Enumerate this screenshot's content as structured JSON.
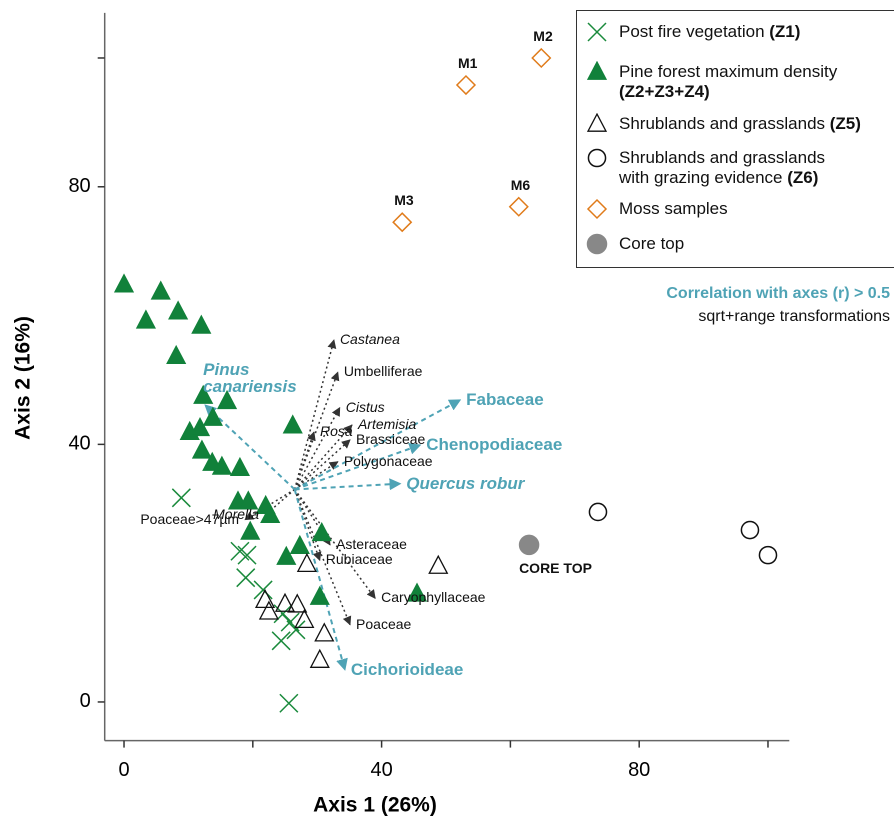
{
  "chart_data": {
    "type": "scatter",
    "x_label": "Axis 1 (26%)",
    "y_label": "Axis 2 (16%)",
    "xlim": [
      -3,
      103
    ],
    "ylim": [
      -6,
      107
    ],
    "xticks": [
      0,
      40,
      80
    ],
    "yticks": [
      0,
      40,
      80
    ],
    "minor_xticks": [
      20,
      60,
      100
    ],
    "minor_yticks": [
      100
    ],
    "series": [
      {
        "name": "Post fire vegetation",
        "code": "(Z1)",
        "marker": "x",
        "color": "#1a8a3c",
        "x": [
          8.9,
          18,
          19.1,
          18.9,
          21.6,
          24.7,
          25.8,
          26.7,
          24.4,
          25.6
        ],
        "values": [
          31.7,
          23.4,
          22.8,
          19.3,
          17.4,
          13.7,
          12.4,
          11.2,
          9.5,
          -0.2
        ]
      },
      {
        "name": "Pine forest maximum density",
        "code": "(Z2+Z3+Z4)",
        "marker": "triangle",
        "color": "#11813a",
        "x": [
          0,
          3.4,
          5.7,
          8.4,
          8.1,
          12,
          12.3,
          16,
          26.2,
          10.2,
          11.8,
          13.8,
          12.1,
          13.7,
          15.2,
          18,
          17.7,
          19.3,
          22,
          22.7,
          19.6,
          30.7,
          27.3,
          25.2,
          30.4,
          45.5
        ],
        "values": [
          64.8,
          59.2,
          63.7,
          60.6,
          53.7,
          58.4,
          47.5,
          46.7,
          42.9,
          41.9,
          42.5,
          44.1,
          39,
          37.1,
          36.5,
          36.3,
          31.1,
          31.1,
          30.4,
          29,
          26.4,
          26.2,
          24.2,
          22.5,
          16.3,
          16.8
        ]
      },
      {
        "name": "Shrublands and grasslands",
        "code": "(Z5)",
        "marker": "triangle-open",
        "color": "#111111",
        "x": [
          28.4,
          48.8,
          21.9,
          25,
          26.9,
          22.5,
          28,
          31.1,
          30.4
        ],
        "values": [
          21.4,
          21.1,
          15.8,
          15.2,
          15.1,
          14,
          12.7,
          10.6,
          6.5
        ]
      },
      {
        "name": "Shrublands and grasslands with grazing evidence",
        "code": "(Z6)",
        "marker": "circle-open",
        "color": "#111111",
        "x": [
          73.6,
          97.2,
          100
        ],
        "values": [
          29.5,
          26.7,
          22.8
        ]
      },
      {
        "name": "Moss samples",
        "marker": "diamond-open",
        "color": "#e07b1a",
        "x": [
          64.8,
          53.1,
          61.3,
          43.2
        ],
        "values": [
          100,
          95.8,
          76.9,
          74.5
        ],
        "point_labels": [
          "M2",
          "M1",
          "M6",
          "M3"
        ]
      },
      {
        "name": "Core top",
        "marker": "circle",
        "color": "#888888",
        "x": [
          62.9
        ],
        "values": [
          24.4
        ],
        "point_labels": [
          "CORE TOP"
        ]
      }
    ],
    "vectors": {
      "origin": [
        26.5,
        33
      ],
      "items": [
        {
          "label": "Castanea",
          "italic": true,
          "correlated": false,
          "x": 32.6,
          "y": 56.2
        },
        {
          "label": "Umbelliferae",
          "italic": false,
          "correlated": false,
          "x": 33.2,
          "y": 51.2
        },
        {
          "label": "Cistus",
          "italic": true,
          "correlated": false,
          "x": 33.5,
          "y": 45.7
        },
        {
          "label": "Rosa",
          "italic": true,
          "correlated": false,
          "x": 29.5,
          "y": 41.9
        },
        {
          "label": "Artemisia",
          "italic": true,
          "correlated": false,
          "x": 35.4,
          "y": 43
        },
        {
          "label": "Brassiceae",
          "italic": false,
          "correlated": false,
          "x": 35.1,
          "y": 40.7
        },
        {
          "label": "Polygonaceae",
          "italic": false,
          "correlated": false,
          "x": 33.2,
          "y": 37.3
        },
        {
          "label": "Morella",
          "italic": true,
          "correlated": false,
          "x": 21.9,
          "y": 29
        },
        {
          "label": "Poaceae>47µm",
          "italic": false,
          "correlated": false,
          "x": 18.8,
          "y": 28.3
        },
        {
          "label": "Asteraceae",
          "italic": false,
          "correlated": false,
          "x": 32,
          "y": 24.4
        },
        {
          "label": "Rubiaceae",
          "italic": false,
          "correlated": false,
          "x": 30.4,
          "y": 22
        },
        {
          "label": "Caryophyllaceae",
          "italic": false,
          "correlated": false,
          "x": 39,
          "y": 16.1
        },
        {
          "label": "Poaceae",
          "italic": false,
          "correlated": false,
          "x": 35.1,
          "y": 12
        },
        {
          "label": "Pinus canariensis",
          "italic": true,
          "correlated": true,
          "x": 12.6,
          "y": 46.1
        },
        {
          "label": "Fabaceae",
          "italic": false,
          "correlated": true,
          "x": 52.2,
          "y": 46.9
        },
        {
          "label": "Chenopodiaceae",
          "italic": false,
          "correlated": true,
          "x": 46,
          "y": 39.9
        },
        {
          "label": "Quercus robur",
          "italic": true,
          "correlated": true,
          "x": 42.9,
          "y": 33.9
        },
        {
          "label": "Cichorioideae",
          "italic": false,
          "correlated": true,
          "x": 34.3,
          "y": 5
        }
      ],
      "correlated_color": "#4fa3b5",
      "other_color": "#333333"
    },
    "annotations": [
      "Correlation with axes (r) > 0.5",
      "sqrt+range transformations"
    ]
  }
}
